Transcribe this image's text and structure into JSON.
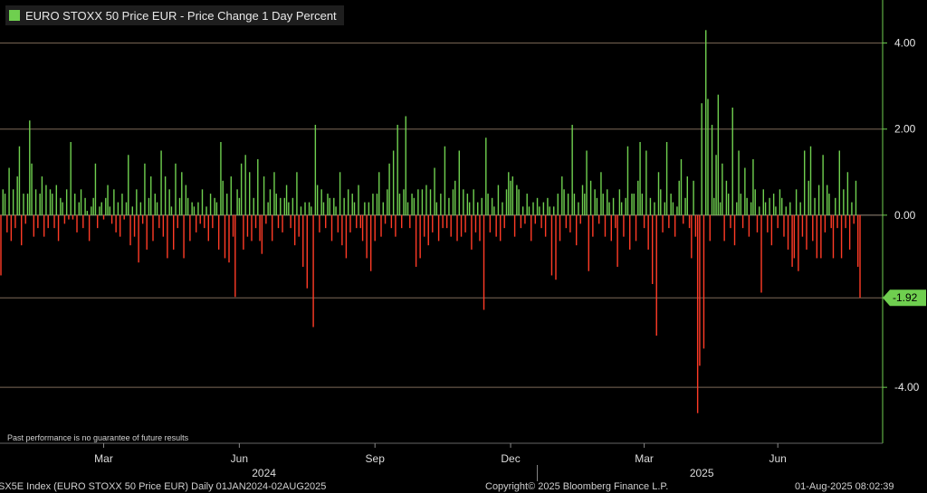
{
  "legend": {
    "label": "EURO STOXX 50 Price EUR - Price Change 1 Day Percent",
    "color": "#6fcf4f"
  },
  "disclaimer": "Past performance is no guarantee of future results",
  "footer": {
    "index": "SX5E Index (EURO STOXX 50 Price EUR)  Daily 01JAN2024-02AUG2025",
    "copyright": "Copyright© 2025 Bloomberg Finance L.P.",
    "timestamp": "01-Aug-2025 08:02:39"
  },
  "chart_data": {
    "type": "bar",
    "title": "EURO STOXX 50 Price EUR - Price Change 1 Day Percent",
    "xlabel": "",
    "ylabel": "",
    "ylim": [
      -5.3,
      5.0
    ],
    "y_ticks": [
      {
        "value": 4,
        "label": "4.00"
      },
      {
        "value": 2,
        "label": "2.00"
      },
      {
        "value": 0,
        "label": "0.00"
      },
      {
        "value": -4,
        "label": "-4.00"
      }
    ],
    "last_value": {
      "value": -1.92,
      "label": "-1.92"
    },
    "x_ticks": [
      {
        "label": "Mar",
        "index": 50
      },
      {
        "label": "Jun",
        "index": 116
      },
      {
        "label": "Sep",
        "index": 182
      },
      {
        "label": "Dec",
        "index": 248
      },
      {
        "label": "Mar",
        "index": 313
      },
      {
        "label": "Jun",
        "index": 378
      }
    ],
    "year_labels": [
      {
        "label": "2024",
        "index": 128
      },
      {
        "label": "2025",
        "index": 341
      }
    ],
    "year_divider_index": 261,
    "grid": true,
    "legend_position": "top-left",
    "up_color": "#6fcf4f",
    "down_color": "#ff3b26",
    "series": [
      {
        "name": "EURO STOXX 50 Price EUR - Price Change 1 Day Percent",
        "values": [
          -1.4,
          0.6,
          0.5,
          -0.4,
          1.1,
          -0.6,
          0.6,
          -0.3,
          0.9,
          1.6,
          -0.7,
          0.5,
          -0.2,
          0.5,
          2.2,
          1.2,
          -0.5,
          0.6,
          -0.3,
          0.5,
          0.9,
          -0.5,
          0.7,
          -0.3,
          0.6,
          0.5,
          -0.3,
          0.7,
          -0.6,
          0.4,
          0.3,
          -0.2,
          0.6,
          -0.1,
          1.7,
          -0.1,
          0.5,
          -0.4,
          0.3,
          0.6,
          -0.3,
          0.4,
          0.1,
          -0.6,
          0.2,
          0.4,
          1.2,
          -0.3,
          0.2,
          0.3,
          -0.1,
          0.4,
          0.7,
          0.2,
          -0.2,
          0.6,
          -0.4,
          0.3,
          -0.5,
          0.5,
          -0.1,
          0.3,
          1.4,
          -0.7,
          0.2,
          -0.5,
          0.6,
          -1.1,
          0.3,
          -0.2,
          1.2,
          -0.8,
          0.4,
          0.9,
          -0.6,
          0.5,
          0.3,
          -0.3,
          1.5,
          -0.5,
          0.9,
          -1.0,
          0.6,
          0.2,
          -0.8,
          1.2,
          -0.3,
          0.4,
          1.0,
          -1.0,
          0.7,
          0.4,
          -0.6,
          0.3,
          0.2,
          -0.4,
          0.3,
          -0.2,
          0.6,
          -0.3,
          0.2,
          -0.6,
          0.5,
          -0.3,
          0.4,
          0.3,
          -0.8,
          1.7,
          0.8,
          -1.0,
          0.5,
          -1.1,
          0.9,
          -0.5,
          -1.9,
          0.6,
          0.4,
          1.2,
          -0.8,
          1.4,
          -0.5,
          1.0,
          -0.6,
          0.4,
          -0.3,
          1.3,
          -0.6,
          -0.9,
          0.9,
          -0.2,
          0.3,
          0.6,
          -0.6,
          1.0,
          0.5,
          -0.3,
          0.4,
          -0.4,
          0.4,
          0.7,
          0.3,
          -0.3,
          0.4,
          -0.7,
          1.0,
          -0.5,
          0.2,
          -1.2,
          0.3,
          -1.7,
          0.3,
          0.2,
          -2.6,
          2.1,
          0.7,
          -0.4,
          0.6,
          0.3,
          -0.3,
          0.5,
          0.4,
          -0.6,
          0.4,
          0.2,
          -0.4,
          1.0,
          -0.7,
          0.4,
          -1.0,
          0.6,
          -0.4,
          0.5,
          0.3,
          -0.3,
          0.7,
          -0.3,
          -0.6,
          0.3,
          -1.0,
          0.3,
          -1.3,
          0.5,
          -0.6,
          0.5,
          1.0,
          -0.5,
          0.3,
          -0.2,
          0.6,
          1.2,
          -0.3,
          1.5,
          -0.5,
          2.1,
          0.5,
          -0.3,
          0.6,
          2.3,
          0.3,
          -0.3,
          0.5,
          0.4,
          -1.2,
          0.6,
          -1.0,
          0.6,
          -0.5,
          0.7,
          -0.7,
          0.6,
          -0.4,
          1.1,
          0.3,
          -0.6,
          0.5,
          -0.3,
          1.6,
          -0.3,
          0.4,
          -0.5,
          0.6,
          0.8,
          -0.6,
          1.5,
          -0.5,
          0.6,
          -0.4,
          0.5,
          0.3,
          -0.8,
          0.6,
          -0.4,
          0.3,
          -0.6,
          0.4,
          -2.2,
          1.8,
          0.5,
          -0.4,
          0.4,
          0.2,
          -0.5,
          0.7,
          -0.6,
          0.3,
          -0.3,
          0.6,
          1.0,
          0.8,
          0.9,
          -0.5,
          0.7,
          0.6,
          -0.3,
          0.2,
          -0.2,
          0.5,
          0.2,
          -0.6,
          0.3,
          -0.2,
          0.4,
          0.2,
          -0.3,
          0.3,
          -0.5,
          0.4,
          0.2,
          -1.4,
          0.2,
          -1.5,
          0.5,
          -0.6,
          0.9,
          0.6,
          -0.3,
          0.5,
          -0.4,
          2.1,
          0.5,
          -0.7,
          0.3,
          -0.2,
          0.7,
          0.5,
          1.5,
          -1.3,
          0.8,
          -0.5,
          0.6,
          0.4,
          -0.2,
          1.0,
          0.5,
          -0.5,
          0.6,
          0.3,
          -0.6,
          0.4,
          -0.3,
          -1.2,
          0.6,
          0.3,
          -0.5,
          0.4,
          1.6,
          -0.8,
          0.5,
          0.5,
          -0.6,
          0.8,
          1.7,
          0.5,
          -0.3,
          1.5,
          -0.8,
          0.4,
          -1.6,
          0.3,
          -2.8,
          1.0,
          0.6,
          -0.4,
          0.3,
          1.7,
          -0.3,
          0.5,
          0.3,
          -0.5,
          0.2,
          0.8,
          1.3,
          -0.2,
          0.4,
          0.9,
          -0.3,
          -1.0,
          0.8,
          -0.5,
          -4.6,
          -3.5,
          2.6,
          -3.1,
          4.3,
          2.7,
          -0.6,
          2.1,
          0.4,
          1.4,
          2.8,
          0.3,
          1.2,
          -0.6,
          0.8,
          0.5,
          -0.3,
          2.5,
          -0.7,
          0.3,
          1.5,
          0.5,
          -0.3,
          1.1,
          0.4,
          -0.5,
          0.3,
          1.3,
          0.6,
          -0.4,
          0.2,
          -1.8,
          0.6,
          0.3,
          -0.4,
          0.4,
          -0.7,
          0.5,
          0.2,
          -0.3,
          0.6,
          0.4,
          -0.5,
          0.2,
          -0.8,
          0.3,
          -1.2,
          -1.0,
          0.6,
          -1.3,
          0.3,
          -0.5,
          1.5,
          -0.8,
          0.8,
          1.6,
          -0.6,
          0.4,
          -1.0,
          0.7,
          -1.0,
          1.4,
          -0.4,
          0.7,
          0.5,
          -0.3,
          -1.0,
          0.4,
          -0.3,
          1.5,
          -1.0,
          0.6,
          -0.3,
          1.0,
          -0.8,
          0.3,
          -0.2,
          0.8,
          -1.2,
          -1.92
        ]
      }
    ]
  }
}
